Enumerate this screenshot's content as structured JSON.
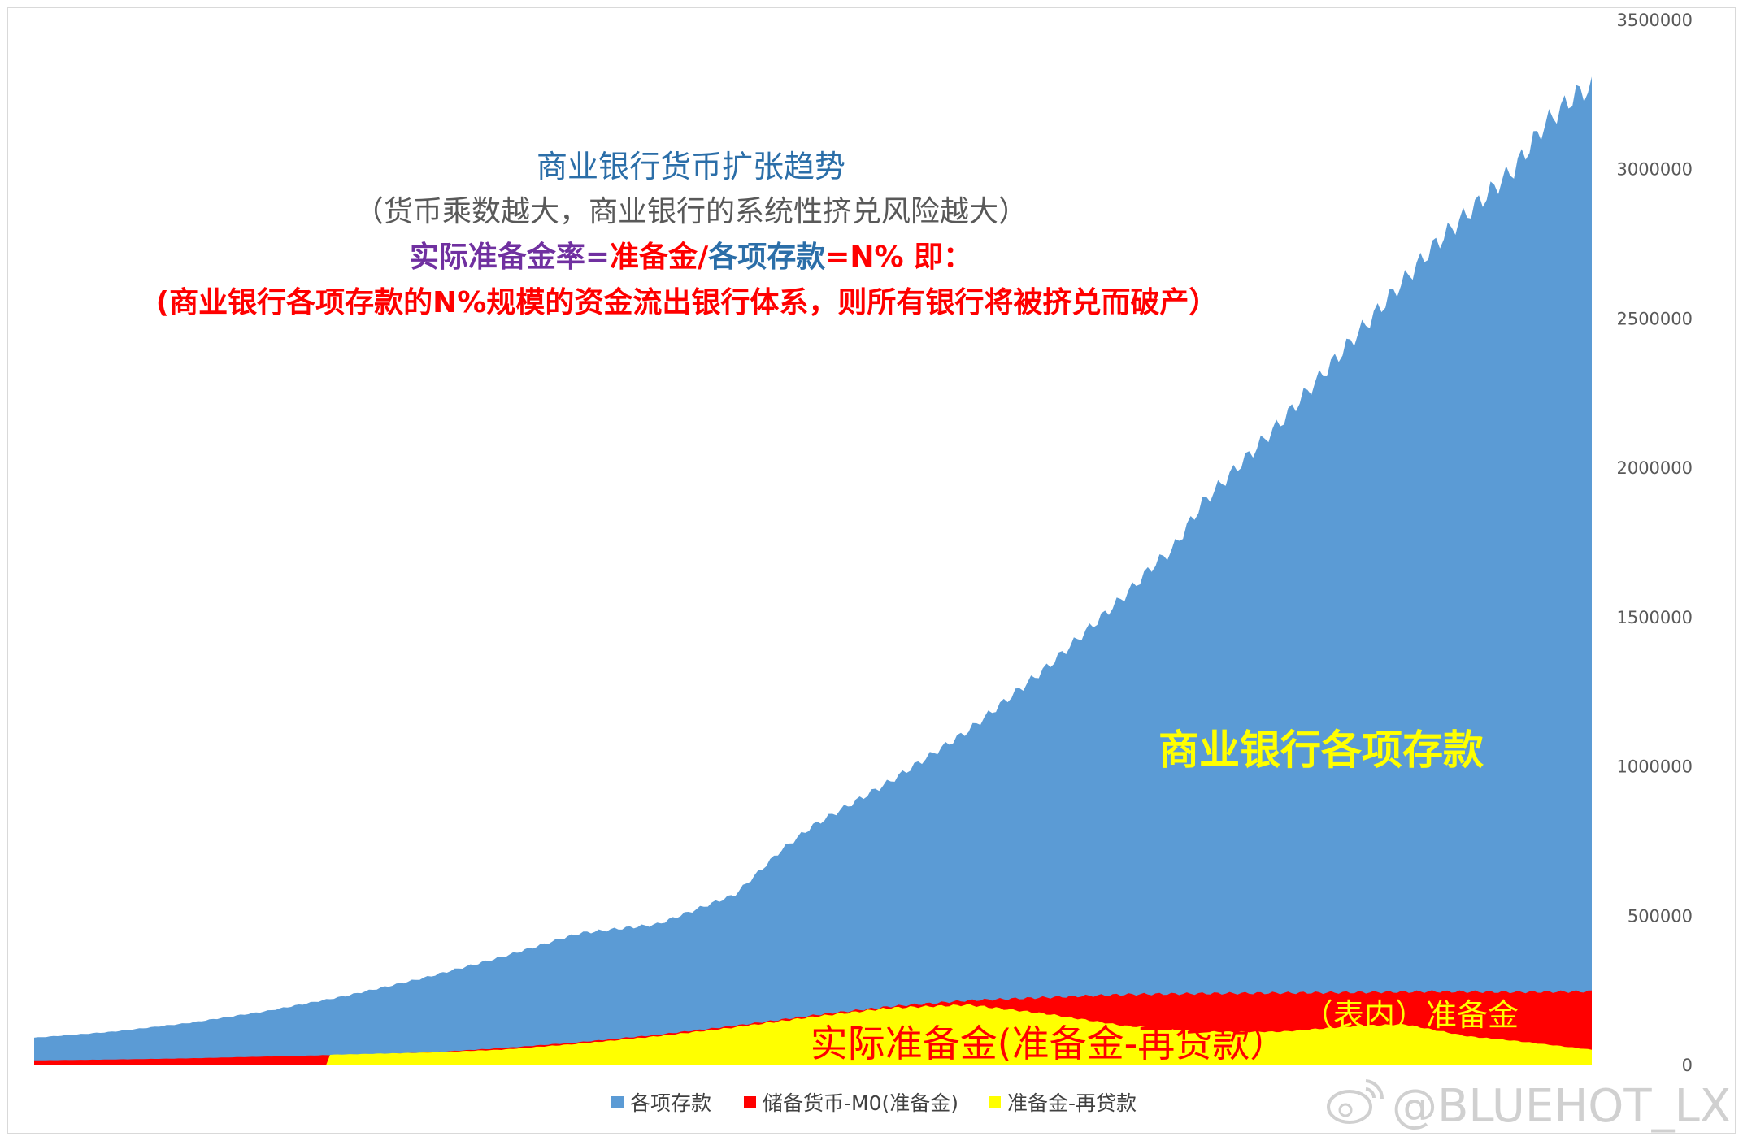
{
  "chart_data": {
    "type": "area",
    "stacked": false,
    "title": "商业银行货币扩张趋势",
    "subtitle": "（货币乘数越大，商业银行的系统性挤兑风险越大）",
    "formula": {
      "part1": "实际准备金率=",
      "part2": "准备金/",
      "part3": "各项存款",
      "part4": "=N%    即："
    },
    "note": "(商业银行各项存款的N%规模的资金流出银行体系，则所有银行将被挤兑而破产）",
    "ylim": [
      0,
      3500000
    ],
    "yticks": [
      "0",
      "500000",
      "1000000",
      "1500000",
      "2000000",
      "2500000",
      "3000000",
      "3500000"
    ],
    "x_index_range": [
      0,
      100
    ],
    "series": [
      {
        "name": "各项存款",
        "color": "#5b9bd5",
        "x": [
          0,
          5,
          10,
          15,
          20,
          25,
          30,
          35,
          40,
          45,
          47,
          48,
          50,
          55,
          60,
          65,
          70,
          72,
          73,
          75,
          80,
          85,
          90,
          93,
          95,
          97,
          99,
          100
        ],
        "values": [
          90000,
          110000,
          140000,
          180000,
          230000,
          290000,
          360000,
          440000,
          470000,
          570000,
          670000,
          720000,
          800000,
          950000,
          1120000,
          1330000,
          1570000,
          1680000,
          1720000,
          1880000,
          2150000,
          2450000,
          2750000,
          2900000,
          3000000,
          3150000,
          3250000,
          3270000
        ]
      },
      {
        "name": "储备货币-M0(准备金)",
        "color": "#ff0000",
        "x": [
          0,
          5,
          10,
          15,
          20,
          25,
          30,
          35,
          40,
          45,
          50,
          55,
          60,
          65,
          70,
          75,
          80,
          85,
          90,
          95,
          100
        ],
        "values": [
          14000,
          17000,
          21000,
          27000,
          33000,
          40000,
          55000,
          75000,
          100000,
          130000,
          165000,
          195000,
          215000,
          225000,
          235000,
          238000,
          240000,
          242000,
          245000,
          243000,
          245000
        ]
      },
      {
        "name": "准备金-再贷款",
        "color": "#ffff00",
        "x": [
          0,
          18.9,
          19,
          25,
          30,
          35,
          40,
          45,
          50,
          55,
          60,
          65,
          70,
          75,
          80,
          85,
          88,
          90,
          92,
          95,
          100
        ],
        "values": [
          0,
          0,
          33000,
          40000,
          50000,
          70000,
          95000,
          125000,
          160000,
          190000,
          200000,
          170000,
          130000,
          110000,
          110000,
          130000,
          135000,
          115000,
          95000,
          80000,
          50000
        ]
      }
    ],
    "annotations": {
      "deposits": "商业银行各项存款",
      "reserves": "（表内）准备金",
      "actual_reserves": "实际准备金(准备金-再贷款）"
    },
    "legend_position": "bottom",
    "grid": false
  },
  "watermark": "@BLUEHOT_LX"
}
